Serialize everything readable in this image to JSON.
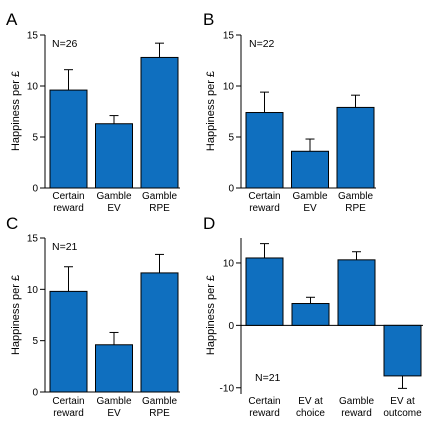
{
  "bar_color": "#0f6fbf",
  "chart_data": [
    {
      "type": "bar",
      "panel": "A",
      "annotation": "N=26",
      "ylabel": "Happiness per £",
      "ylim": [
        0,
        15
      ],
      "yticks": [
        0,
        5,
        10,
        15
      ],
      "categories": [
        [
          "Certain",
          "reward"
        ],
        [
          "Gamble",
          "EV"
        ],
        [
          "Gamble",
          "RPE"
        ]
      ],
      "values": [
        9.6,
        6.3,
        12.8
      ],
      "errors": [
        2.0,
        0.8,
        1.4
      ]
    },
    {
      "type": "bar",
      "panel": "B",
      "annotation": "N=22",
      "ylabel": "Happiness per £",
      "ylim": [
        0,
        15
      ],
      "yticks": [
        0,
        5,
        10,
        15
      ],
      "categories": [
        [
          "Certain",
          "reward"
        ],
        [
          "Gamble",
          "EV"
        ],
        [
          "Gamble",
          "RPE"
        ]
      ],
      "values": [
        7.4,
        3.6,
        7.9
      ],
      "errors": [
        2.0,
        1.2,
        1.2
      ]
    },
    {
      "type": "bar",
      "panel": "C",
      "annotation": "N=21",
      "ylabel": "Happiness per £",
      "ylim": [
        0,
        15
      ],
      "yticks": [
        0,
        5,
        10,
        15
      ],
      "categories": [
        [
          "Certain",
          "reward"
        ],
        [
          "Gamble",
          "EV"
        ],
        [
          "Gamble",
          "RPE"
        ]
      ],
      "values": [
        9.8,
        4.6,
        11.6
      ],
      "errors": [
        2.4,
        1.2,
        1.8
      ]
    },
    {
      "type": "bar",
      "panel": "D",
      "annotation": "N=21",
      "ylabel": "Happiness per £",
      "ylim": [
        -11,
        14
      ],
      "yticks": [
        -10,
        0,
        10
      ],
      "categories": [
        [
          "Certain",
          "reward"
        ],
        [
          "EV at",
          "choice"
        ],
        [
          "Gamble",
          "reward"
        ],
        [
          "EV at",
          "outcome"
        ]
      ],
      "values": [
        10.8,
        3.5,
        10.5,
        -8.1
      ],
      "errors": [
        2.3,
        1.0,
        1.3,
        2.0
      ]
    }
  ]
}
